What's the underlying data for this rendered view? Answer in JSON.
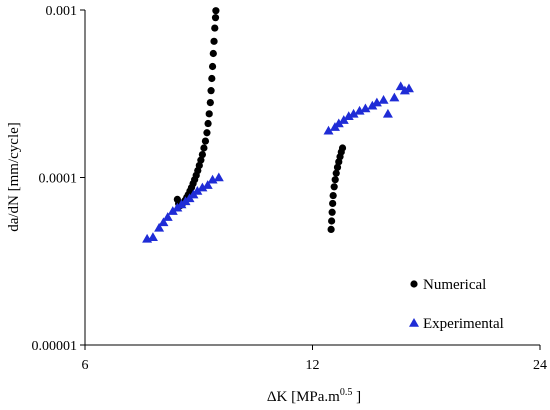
{
  "chart_data": {
    "type": "scatter",
    "title": "",
    "xlabel_main": "ΔK [MPa.m",
    "xlabel_sup": "0.5",
    "xlabel_end": " ]",
    "ylabel": "da/dN [mm/cycle]",
    "x_scale": "log2",
    "y_scale": "log",
    "xlim": [
      6,
      24
    ],
    "ylim": [
      1e-05,
      0.001
    ],
    "x_ticks": [
      6,
      12,
      24
    ],
    "x_tick_labels": [
      "6",
      "12",
      "24"
    ],
    "y_ticks": [
      1e-05,
      0.0001,
      0.001
    ],
    "y_tick_labels": [
      "0.00001",
      "0.0001",
      "0.001"
    ],
    "grid": false,
    "legend_position": "bottom-right",
    "series": [
      {
        "name": "Numerical",
        "marker": "circle",
        "color": "#000000",
        "points": [
          [
            7.95,
            7.4e-05
          ],
          [
            7.98,
            7e-05
          ],
          [
            8.02,
            6.8e-05
          ],
          [
            8.06,
            6.9e-05
          ],
          [
            8.1,
            7.1e-05
          ],
          [
            8.14,
            7.3e-05
          ],
          [
            8.18,
            7.6e-05
          ],
          [
            8.22,
            7.9e-05
          ],
          [
            8.26,
            8.3e-05
          ],
          [
            8.3,
            8.7e-05
          ],
          [
            8.34,
            9.2e-05
          ],
          [
            8.38,
            9.7e-05
          ],
          [
            8.42,
            0.000103
          ],
          [
            8.46,
            0.00011
          ],
          [
            8.5,
            0.000118
          ],
          [
            8.54,
            0.000127
          ],
          [
            8.58,
            0.000137
          ],
          [
            8.62,
            0.00015
          ],
          [
            8.66,
            0.000165
          ],
          [
            8.7,
            0.000185
          ],
          [
            8.73,
            0.00021
          ],
          [
            8.76,
            0.00024
          ],
          [
            8.79,
            0.00028
          ],
          [
            8.81,
            0.00033
          ],
          [
            8.83,
            0.00039
          ],
          [
            8.85,
            0.00046
          ],
          [
            8.87,
            0.00055
          ],
          [
            8.89,
            0.00065
          ],
          [
            8.91,
            0.00078
          ],
          [
            8.93,
            0.0009
          ],
          [
            8.94,
            0.00099
          ],
          [
            12.7,
            4.9e-05
          ],
          [
            12.72,
            5.5e-05
          ],
          [
            12.74,
            6.2e-05
          ],
          [
            12.76,
            7e-05
          ],
          [
            12.78,
            7.8e-05
          ],
          [
            12.82,
            8.8e-05
          ],
          [
            12.86,
            9.7e-05
          ],
          [
            12.9,
            0.000106
          ],
          [
            12.95,
            0.000115
          ],
          [
            13.0,
            0.000124
          ],
          [
            13.05,
            0.000133
          ],
          [
            13.1,
            0.000142
          ],
          [
            13.15,
            0.00015
          ]
        ]
      },
      {
        "name": "Experimental",
        "marker": "triangle",
        "color": "#1f2cd6",
        "points": [
          [
            7.25,
            4.3e-05
          ],
          [
            7.38,
            4.4e-05
          ],
          [
            7.52,
            5e-05
          ],
          [
            7.62,
            5.4e-05
          ],
          [
            7.72,
            5.8e-05
          ],
          [
            7.84,
            6.3e-05
          ],
          [
            7.95,
            6.6e-05
          ],
          [
            8.05,
            6.9e-05
          ],
          [
            8.15,
            7.2e-05
          ],
          [
            8.25,
            7.5e-05
          ],
          [
            8.35,
            7.9e-05
          ],
          [
            8.45,
            8.3e-05
          ],
          [
            8.58,
            8.7e-05
          ],
          [
            8.72,
            9e-05
          ],
          [
            8.85,
            9.7e-05
          ],
          [
            9.02,
            0.0001
          ],
          [
            12.6,
            0.00019
          ],
          [
            12.85,
            0.0002
          ],
          [
            13.0,
            0.00021
          ],
          [
            13.2,
            0.00022
          ],
          [
            13.4,
            0.000232
          ],
          [
            13.6,
            0.00024
          ],
          [
            13.85,
            0.00025
          ],
          [
            14.1,
            0.000258
          ],
          [
            14.4,
            0.000268
          ],
          [
            14.6,
            0.00028
          ],
          [
            14.9,
            0.00029
          ],
          [
            15.1,
            0.00024
          ],
          [
            15.4,
            0.0003
          ],
          [
            15.7,
            0.00035
          ],
          [
            15.9,
            0.00033
          ],
          [
            16.1,
            0.00034
          ]
        ]
      }
    ]
  }
}
